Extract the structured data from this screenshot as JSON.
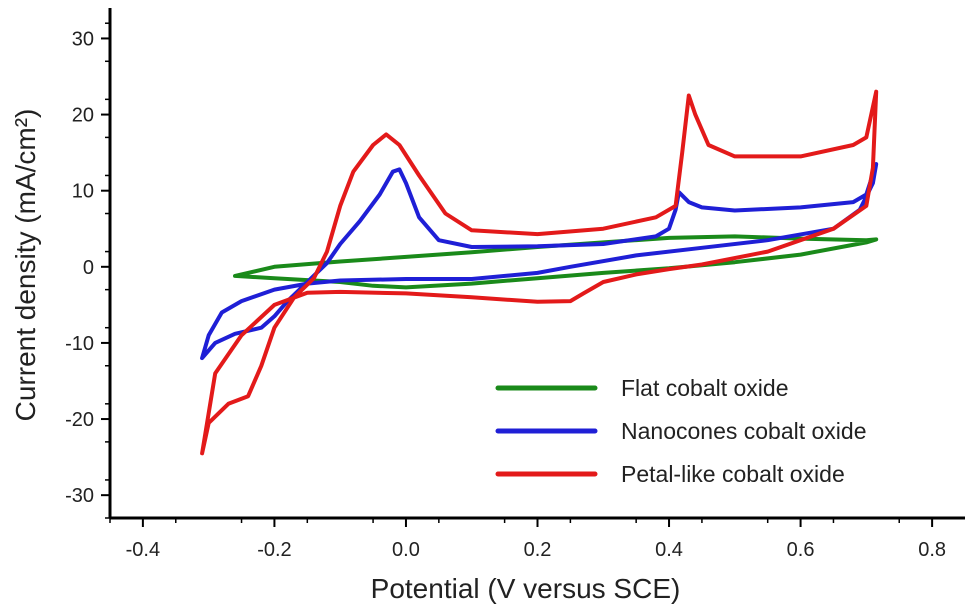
{
  "chart_data": {
    "type": "line",
    "title": "",
    "xlabel": "Potential (V versus SCE)",
    "ylabel": "Current density (mA/cm²)",
    "xlim": [
      -0.45,
      0.85
    ],
    "ylim": [
      -33,
      34
    ],
    "x_ticks": [
      -0.4,
      -0.2,
      0.0,
      0.2,
      0.4,
      0.6,
      0.8
    ],
    "x_tick_labels": [
      "-0.4",
      "-0.2",
      "0.0",
      "0.2",
      "0.4",
      "0.6",
      "0.8"
    ],
    "y_ticks": [
      -30,
      -20,
      -10,
      0,
      10,
      20,
      30
    ],
    "y_tick_labels": [
      "-30",
      "-20",
      "-10",
      "0",
      "10",
      "20",
      "30"
    ],
    "grid": false,
    "legend_position": "bottom-right",
    "series": [
      {
        "name": "Flat cobalt oxide",
        "color": "#1a8a1a",
        "points": [
          [
            -0.26,
            -1.2
          ],
          [
            -0.2,
            0.0
          ],
          [
            -0.1,
            0.7
          ],
          [
            0.0,
            1.3
          ],
          [
            0.1,
            1.9
          ],
          [
            0.2,
            2.6
          ],
          [
            0.3,
            3.2
          ],
          [
            0.4,
            3.8
          ],
          [
            0.5,
            4.0
          ],
          [
            0.6,
            3.7
          ],
          [
            0.7,
            3.5
          ],
          [
            0.715,
            3.6
          ],
          [
            0.7,
            3.2
          ],
          [
            0.6,
            1.6
          ],
          [
            0.5,
            0.6
          ],
          [
            0.4,
            -0.2
          ],
          [
            0.3,
            -0.8
          ],
          [
            0.2,
            -1.5
          ],
          [
            0.1,
            -2.2
          ],
          [
            0.0,
            -2.7
          ],
          [
            -0.05,
            -2.5
          ],
          [
            -0.1,
            -2.0
          ],
          [
            -0.2,
            -1.5
          ],
          [
            -0.26,
            -1.2
          ]
        ]
      },
      {
        "name": "Nanocones cobalt oxide",
        "color": "#1f1fd6",
        "points": [
          [
            -0.31,
            -12.0
          ],
          [
            -0.29,
            -10.0
          ],
          [
            -0.26,
            -8.8
          ],
          [
            -0.22,
            -8.0
          ],
          [
            -0.2,
            -6.5
          ],
          [
            -0.18,
            -4.5
          ],
          [
            -0.15,
            -2.0
          ],
          [
            -0.12,
            0.5
          ],
          [
            -0.1,
            3.0
          ],
          [
            -0.07,
            6.0
          ],
          [
            -0.04,
            9.5
          ],
          [
            -0.02,
            12.5
          ],
          [
            -0.01,
            12.8
          ],
          [
            0.0,
            11.0
          ],
          [
            0.02,
            6.5
          ],
          [
            0.05,
            3.5
          ],
          [
            0.1,
            2.6
          ],
          [
            0.2,
            2.7
          ],
          [
            0.3,
            3.0
          ],
          [
            0.38,
            4.0
          ],
          [
            0.4,
            5.0
          ],
          [
            0.41,
            7.5
          ],
          [
            0.415,
            9.8
          ],
          [
            0.43,
            8.5
          ],
          [
            0.45,
            7.8
          ],
          [
            0.5,
            7.4
          ],
          [
            0.6,
            7.8
          ],
          [
            0.68,
            8.5
          ],
          [
            0.7,
            9.5
          ],
          [
            0.715,
            13.5
          ],
          [
            0.71,
            11.0
          ],
          [
            0.69,
            7.5
          ],
          [
            0.65,
            5.0
          ],
          [
            0.55,
            3.5
          ],
          [
            0.45,
            2.5
          ],
          [
            0.35,
            1.5
          ],
          [
            0.25,
            0.0
          ],
          [
            0.2,
            -0.8
          ],
          [
            0.1,
            -1.6
          ],
          [
            0.0,
            -1.6
          ],
          [
            -0.1,
            -1.8
          ],
          [
            -0.15,
            -2.2
          ],
          [
            -0.2,
            -3.0
          ],
          [
            -0.25,
            -4.5
          ],
          [
            -0.28,
            -6.0
          ],
          [
            -0.3,
            -9.0
          ],
          [
            -0.31,
            -12.0
          ]
        ]
      },
      {
        "name": "Petal-like cobalt oxide",
        "color": "#e31a1a",
        "points": [
          [
            -0.31,
            -24.5
          ],
          [
            -0.3,
            -20.5
          ],
          [
            -0.27,
            -18.0
          ],
          [
            -0.24,
            -17.0
          ],
          [
            -0.22,
            -13.0
          ],
          [
            -0.2,
            -8.0
          ],
          [
            -0.17,
            -4.0
          ],
          [
            -0.14,
            -1.5
          ],
          [
            -0.12,
            2.0
          ],
          [
            -0.1,
            8.0
          ],
          [
            -0.08,
            12.5
          ],
          [
            -0.05,
            16.0
          ],
          [
            -0.03,
            17.4
          ],
          [
            -0.01,
            16.0
          ],
          [
            0.02,
            12.0
          ],
          [
            0.06,
            7.0
          ],
          [
            0.1,
            4.8
          ],
          [
            0.2,
            4.3
          ],
          [
            0.3,
            5.0
          ],
          [
            0.38,
            6.5
          ],
          [
            0.41,
            8.0
          ],
          [
            0.42,
            15.0
          ],
          [
            0.43,
            22.5
          ],
          [
            0.44,
            20.0
          ],
          [
            0.46,
            16.0
          ],
          [
            0.5,
            14.5
          ],
          [
            0.6,
            14.5
          ],
          [
            0.68,
            16.0
          ],
          [
            0.7,
            17.0
          ],
          [
            0.715,
            23.0
          ],
          [
            0.71,
            13.0
          ],
          [
            0.7,
            8.0
          ],
          [
            0.65,
            5.0
          ],
          [
            0.55,
            2.0
          ],
          [
            0.45,
            0.3
          ],
          [
            0.4,
            -0.3
          ],
          [
            0.35,
            -1.0
          ],
          [
            0.3,
            -2.0
          ],
          [
            0.27,
            -3.5
          ],
          [
            0.25,
            -4.5
          ],
          [
            0.2,
            -4.6
          ],
          [
            0.1,
            -4.0
          ],
          [
            0.0,
            -3.5
          ],
          [
            -0.1,
            -3.3
          ],
          [
            -0.15,
            -3.4
          ],
          [
            -0.2,
            -5.0
          ],
          [
            -0.25,
            -9.0
          ],
          [
            -0.29,
            -14.0
          ],
          [
            -0.31,
            -24.5
          ]
        ]
      }
    ]
  }
}
